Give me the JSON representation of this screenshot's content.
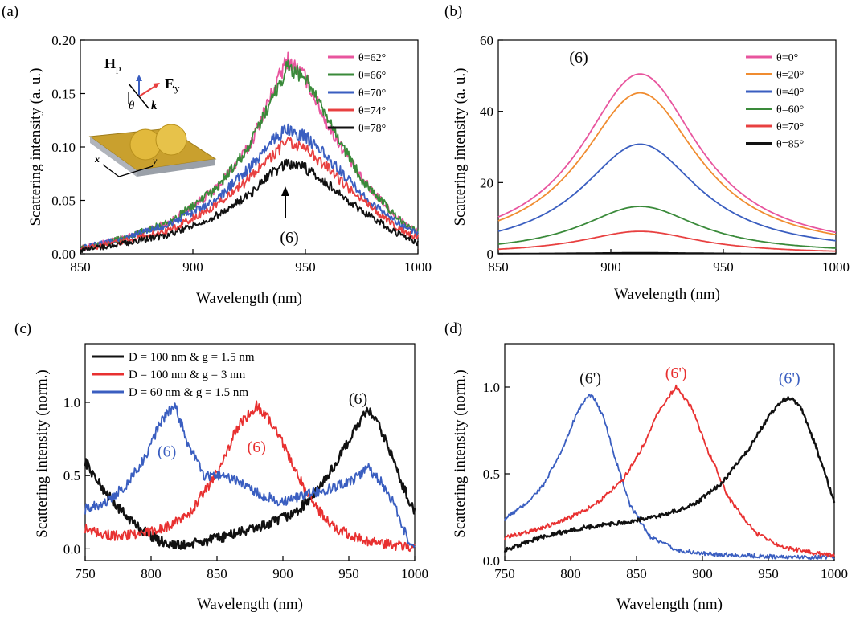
{
  "chart_data": [
    {
      "panel": "(a)",
      "type": "line",
      "xlabel": "Wavelength (nm)",
      "ylabel": "Scattering intensity (a. u.)",
      "xlim": [
        850,
        1000
      ],
      "ylim": [
        0,
        0.2
      ],
      "xticks": [
        "850",
        "900",
        "950",
        "1000"
      ],
      "yticks": [
        "0.00",
        "0.05",
        "0.10",
        "0.15",
        "0.20"
      ],
      "legend_position": "top-right",
      "annotation": "(6)",
      "inset_labels": {
        "h": "H",
        "h_sub": "p",
        "e": "E",
        "e_sub": "y",
        "k": "k",
        "theta": "θ",
        "x": "x",
        "y": "y"
      },
      "series": [
        {
          "name": "θ=62°",
          "color": "#e8559e",
          "x": [
            850,
            870,
            890,
            910,
            925,
            935,
            942,
            950,
            960,
            975,
            990,
            1000
          ],
          "y": [
            0.005,
            0.015,
            0.03,
            0.06,
            0.1,
            0.15,
            0.182,
            0.165,
            0.12,
            0.07,
            0.035,
            0.02
          ]
        },
        {
          "name": "θ=66°",
          "color": "#3a8a3a",
          "x": [
            850,
            870,
            890,
            910,
            925,
            935,
            942,
            950,
            960,
            975,
            990,
            1000
          ],
          "y": [
            0.005,
            0.015,
            0.03,
            0.06,
            0.1,
            0.145,
            0.175,
            0.165,
            0.125,
            0.07,
            0.035,
            0.02
          ]
        },
        {
          "name": "θ=70°",
          "color": "#3a5ec0",
          "x": [
            850,
            870,
            890,
            910,
            925,
            935,
            942,
            950,
            960,
            975,
            990,
            1000
          ],
          "y": [
            0.005,
            0.015,
            0.028,
            0.05,
            0.08,
            0.105,
            0.117,
            0.11,
            0.09,
            0.055,
            0.03,
            0.018
          ]
        },
        {
          "name": "θ=74°",
          "color": "#e84040",
          "x": [
            850,
            870,
            890,
            910,
            925,
            935,
            942,
            950,
            960,
            975,
            990,
            1000
          ],
          "y": [
            0.004,
            0.012,
            0.022,
            0.045,
            0.07,
            0.092,
            0.105,
            0.098,
            0.08,
            0.05,
            0.025,
            0.015
          ]
        },
        {
          "name": "θ=78°",
          "color": "#111111",
          "x": [
            850,
            870,
            890,
            910,
            925,
            935,
            942,
            950,
            960,
            975,
            990,
            1000
          ],
          "y": [
            0.003,
            0.01,
            0.018,
            0.035,
            0.055,
            0.075,
            0.085,
            0.08,
            0.065,
            0.04,
            0.02,
            0.01
          ]
        }
      ]
    },
    {
      "panel": "(b)",
      "type": "line",
      "xlabel": "Wavelength (nm)",
      "ylabel": "Scattering intensity (a. u.)",
      "xlim": [
        850,
        1000
      ],
      "ylim": [
        0,
        60
      ],
      "xticks": [
        "850",
        "900",
        "950",
        "1000"
      ],
      "yticks": [
        "0",
        "20",
        "40",
        "60"
      ],
      "legend_position": "top-right",
      "annotation": "(6)",
      "lorentz_center": 913,
      "lorentz_hwhm": 32,
      "series": [
        {
          "name": "θ=0°",
          "color": "#e8559e",
          "peak": 50.5
        },
        {
          "name": "θ=20°",
          "color": "#f08c30",
          "peak": 45.2
        },
        {
          "name": "θ=40°",
          "color": "#3a5ec0",
          "peak": 30.8
        },
        {
          "name": "θ=60°",
          "color": "#3a8a3a",
          "peak": 13.3
        },
        {
          "name": "θ=70°",
          "color": "#e84040",
          "peak": 6.3
        },
        {
          "name": "θ=85°",
          "color": "#111111",
          "peak": 0.3
        }
      ]
    },
    {
      "panel": "(c)",
      "type": "line",
      "xlabel": "Wavelength (nm)",
      "ylabel": "Scattering intensity (norm.)",
      "xlim": [
        750,
        1000
      ],
      "ylim": [
        -0.08,
        1.4
      ],
      "xticks": [
        "750",
        "800",
        "850",
        "900",
        "950",
        "1000"
      ],
      "yticks": [
        "0.0",
        "0.5",
        "1.0"
      ],
      "legend_position": "top-left",
      "series": [
        {
          "name": "D = 100 nm & g = 1.5 nm",
          "color": "#111111",
          "annotation": "(6)",
          "x": [
            750,
            760,
            775,
            790,
            805,
            820,
            835,
            850,
            870,
            890,
            910,
            925,
            940,
            955,
            965,
            972,
            980,
            990,
            1000
          ],
          "y": [
            0.6,
            0.45,
            0.28,
            0.15,
            0.06,
            0.02,
            0.04,
            0.07,
            0.12,
            0.17,
            0.25,
            0.38,
            0.58,
            0.82,
            0.95,
            0.85,
            0.7,
            0.45,
            0.25
          ]
        },
        {
          "name": "D = 100 nm & g = 3 nm",
          "color": "#e83030",
          "annotation": "(6)",
          "x": [
            750,
            770,
            790,
            810,
            830,
            850,
            865,
            880,
            895,
            910,
            925,
            940,
            960,
            980,
            1000
          ],
          "y": [
            0.14,
            0.09,
            0.1,
            0.14,
            0.25,
            0.52,
            0.82,
            0.98,
            0.82,
            0.52,
            0.28,
            0.14,
            0.06,
            0.03,
            0.0
          ]
        },
        {
          "name": "D = 60 nm & g = 1.5 nm",
          "color": "#3a5ec0",
          "annotation": "(6)",
          "x": [
            750,
            765,
            780,
            795,
            808,
            818,
            828,
            840,
            855,
            870,
            885,
            900,
            920,
            940,
            955,
            965,
            975,
            985,
            995,
            1000
          ],
          "y": [
            0.27,
            0.32,
            0.42,
            0.62,
            0.88,
            0.98,
            0.72,
            0.5,
            0.5,
            0.44,
            0.36,
            0.32,
            0.38,
            0.42,
            0.48,
            0.55,
            0.45,
            0.3,
            0.05,
            0.0
          ]
        }
      ]
    },
    {
      "panel": "(d)",
      "type": "line",
      "xlabel": "Wavelength (nm)",
      "ylabel": "Scattering intensity (norm.)",
      "xlim": [
        750,
        1000
      ],
      "ylim": [
        0,
        1.25
      ],
      "xticks": [
        "750",
        "800",
        "850",
        "900",
        "950",
        "1000"
      ],
      "yticks": [
        "0.0",
        "0.5",
        "1.0"
      ],
      "series": [
        {
          "name": "",
          "color": "#3a5ec0",
          "annotation": "(6')",
          "x": [
            750,
            765,
            780,
            795,
            805,
            812,
            817,
            825,
            835,
            845,
            860,
            880,
            900,
            930,
            960,
            990,
            1000
          ],
          "y": [
            0.24,
            0.32,
            0.44,
            0.66,
            0.86,
            0.94,
            0.95,
            0.82,
            0.56,
            0.32,
            0.14,
            0.06,
            0.04,
            0.03,
            0.02,
            0.02,
            0.02
          ]
        },
        {
          "name": "",
          "color": "#e83030",
          "annotation": "(6')",
          "x": [
            750,
            775,
            800,
            820,
            840,
            855,
            868,
            880,
            892,
            905,
            920,
            940,
            960,
            980,
            1000
          ],
          "y": [
            0.13,
            0.18,
            0.25,
            0.33,
            0.47,
            0.66,
            0.88,
            1.0,
            0.88,
            0.62,
            0.36,
            0.16,
            0.08,
            0.05,
            0.03
          ]
        },
        {
          "name": "",
          "color": "#111111",
          "annotation": "(6')",
          "x": [
            750,
            780,
            810,
            840,
            870,
            895,
            915,
            935,
            950,
            960,
            967,
            975,
            985,
            1000
          ],
          "y": [
            0.06,
            0.14,
            0.19,
            0.22,
            0.26,
            0.33,
            0.45,
            0.64,
            0.83,
            0.92,
            0.94,
            0.88,
            0.68,
            0.34
          ]
        }
      ]
    }
  ]
}
